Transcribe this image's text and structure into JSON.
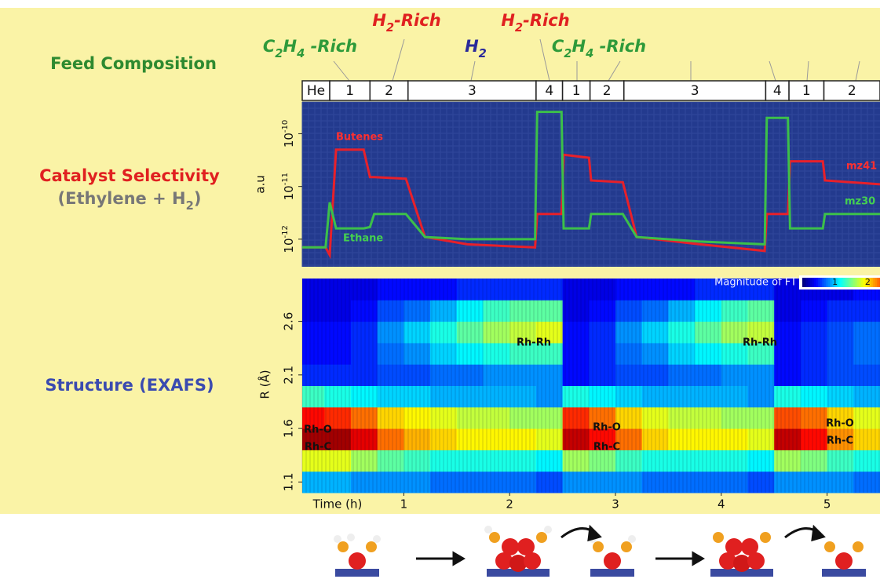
{
  "row_labels": {
    "feed": [
      "Feed  Composition"
    ],
    "selectivity": [
      "Catalyst Selectivity"
    ],
    "selectivity_sub": [
      "(Ethylene + H",
      "2",
      ")"
    ],
    "structure": [
      "Structure (EXAFS)"
    ]
  },
  "feed_labels": [
    {
      "parts": [
        "C",
        "2",
        "H",
        "4",
        " -Rich"
      ],
      "color": "#2e9a3a"
    },
    {
      "parts": [
        "H",
        "2",
        "-Rich"
      ],
      "color": "#e02020"
    },
    {
      "parts": [
        "H",
        "2"
      ],
      "color": "#2a2a9a"
    },
    {
      "parts": [
        "H",
        "2",
        "-Rich"
      ],
      "color": "#e02020"
    },
    {
      "parts": [
        "C",
        "2",
        "H",
        "4",
        " -Rich"
      ],
      "color": "#2e9a3a"
    }
  ],
  "chart_data": [
    {
      "type": "line",
      "log_y": true,
      "y_label": "a.u",
      "xlim": [
        0.04,
        5.5
      ],
      "ylim": [
        3e-13,
        4e-10
      ],
      "yticks": [
        {
          "value": 1e-10,
          "label": "10",
          "superscript": "-10"
        },
        {
          "value": 1e-11,
          "label": "10",
          "superscript": "-11"
        },
        {
          "value": 1e-12,
          "label": "10",
          "superscript": "-12"
        }
      ],
      "feed_segments": [
        {
          "label": "He",
          "start": 0.04,
          "end": 0.3
        },
        {
          "label": "1",
          "start": 0.3,
          "end": 0.68
        },
        {
          "label": "2",
          "start": 0.68,
          "end": 1.04
        },
        {
          "label": "3",
          "start": 1.04,
          "end": 2.25
        },
        {
          "label": "4",
          "start": 2.25,
          "end": 2.5
        },
        {
          "label": "1",
          "start": 2.5,
          "end": 2.76
        },
        {
          "label": "2",
          "start": 2.76,
          "end": 3.08
        },
        {
          "label": "3",
          "start": 3.08,
          "end": 4.42
        },
        {
          "label": "4",
          "start": 4.42,
          "end": 4.64
        },
        {
          "label": "1",
          "start": 4.64,
          "end": 4.97
        },
        {
          "label": "2",
          "start": 4.97,
          "end": 5.5
        }
      ],
      "x": [
        0.04,
        0.26,
        0.3,
        0.36,
        0.62,
        0.68,
        0.72,
        1.02,
        1.2,
        1.6,
        2.24,
        2.26,
        2.49,
        2.51,
        2.75,
        2.77,
        3.07,
        3.2,
        3.8,
        4.41,
        4.43,
        4.63,
        4.65,
        4.96,
        4.98,
        5.5
      ],
      "series": [
        {
          "name": "Butenes",
          "color": "#e8202a",
          "values": [
            7e-13,
            7e-13,
            5e-13,
            5e-11,
            5e-11,
            1.5e-11,
            1.5e-11,
            1.4e-11,
            1.1e-12,
            8e-13,
            7e-13,
            3e-12,
            3e-12,
            4e-11,
            3.5e-11,
            1.3e-11,
            1.2e-11,
            1.1e-12,
            8e-13,
            6e-13,
            3e-12,
            3e-12,
            3e-11,
            3e-11,
            1.3e-11,
            1.1e-11
          ]
        },
        {
          "name": "Ethane",
          "color": "#3cc04a",
          "values": [
            7e-13,
            7e-13,
            5e-12,
            1.6e-12,
            1.6e-12,
            1.7e-12,
            3e-12,
            3e-12,
            1.1e-12,
            1e-12,
            1e-12,
            2.6e-10,
            2.6e-10,
            1.6e-12,
            1.6e-12,
            3e-12,
            3e-12,
            1.1e-12,
            9e-13,
            8e-13,
            2e-10,
            2e-10,
            1.6e-12,
            1.6e-12,
            3e-12,
            3e-12
          ]
        }
      ],
      "annotations": [
        "mz41",
        "mz30"
      ]
    },
    {
      "type": "heatmap",
      "x_label": "Time (h)",
      "y_label": "R (Å)",
      "xlim": [
        0.04,
        5.5
      ],
      "ylim": [
        1.0,
        3.0
      ],
      "xticks": [
        1,
        2,
        3,
        4,
        5
      ],
      "yticks": [
        1.1,
        1.6,
        2.1,
        2.6
      ],
      "x_edges": [
        0.04,
        0.25,
        0.5,
        0.75,
        1.0,
        1.25,
        1.5,
        1.75,
        2.0,
        2.25,
        2.5,
        2.75,
        3.0,
        3.25,
        3.5,
        3.75,
        4.0,
        4.25,
        4.5,
        4.75,
        5.0,
        5.25,
        5.5
      ],
      "y_edges": [
        1.0,
        1.2,
        1.4,
        1.6,
        1.8,
        2.0,
        2.2,
        2.4,
        2.6,
        2.8,
        3.0
      ],
      "values": [
        [
          0.9,
          0.9,
          0.8,
          0.8,
          0.8,
          0.7,
          0.7,
          0.7,
          0.7,
          0.6,
          0.8,
          0.8,
          0.8,
          0.7,
          0.7,
          0.7,
          0.7,
          0.6,
          0.8,
          0.8,
          0.8,
          0.7
        ],
        [
          1.8,
          1.8,
          1.6,
          1.4,
          1.3,
          1.2,
          1.2,
          1.2,
          1.2,
          1.1,
          1.6,
          1.5,
          1.3,
          1.2,
          1.2,
          1.2,
          1.2,
          1.1,
          1.6,
          1.5,
          1.3,
          1.2
        ],
        [
          2.9,
          2.9,
          2.7,
          2.3,
          2.1,
          2.0,
          1.9,
          1.9,
          1.9,
          1.8,
          2.8,
          2.6,
          2.3,
          2.0,
          1.9,
          1.9,
          1.9,
          1.8,
          2.8,
          2.6,
          2.2,
          2.0
        ],
        [
          2.6,
          2.5,
          2.3,
          2.0,
          1.9,
          1.8,
          1.7,
          1.7,
          1.6,
          1.6,
          2.5,
          2.3,
          2.0,
          1.8,
          1.7,
          1.7,
          1.6,
          1.6,
          2.4,
          2.3,
          2.0,
          1.8
        ],
        [
          1.3,
          1.2,
          1.1,
          1.0,
          1.0,
          0.9,
          0.9,
          0.9,
          0.9,
          0.8,
          1.2,
          1.1,
          1.0,
          0.9,
          0.9,
          0.9,
          0.9,
          0.8,
          1.2,
          1.1,
          1.0,
          0.9
        ],
        [
          0.5,
          0.5,
          0.5,
          0.6,
          0.6,
          0.7,
          0.7,
          0.8,
          0.8,
          0.8,
          0.4,
          0.5,
          0.6,
          0.6,
          0.7,
          0.7,
          0.8,
          0.8,
          0.4,
          0.5,
          0.6,
          0.6
        ],
        [
          0.4,
          0.4,
          0.5,
          0.7,
          0.8,
          1.0,
          1.1,
          1.2,
          1.3,
          1.3,
          0.4,
          0.5,
          0.7,
          0.8,
          1.0,
          1.1,
          1.2,
          1.3,
          0.4,
          0.5,
          0.6,
          0.7
        ],
        [
          0.4,
          0.4,
          0.5,
          0.8,
          1.0,
          1.2,
          1.4,
          1.6,
          1.7,
          1.8,
          0.4,
          0.5,
          0.8,
          1.0,
          1.2,
          1.4,
          1.6,
          1.7,
          0.4,
          0.5,
          0.6,
          0.7
        ],
        [
          0.3,
          0.3,
          0.4,
          0.6,
          0.7,
          0.9,
          1.1,
          1.3,
          1.4,
          1.4,
          0.3,
          0.4,
          0.6,
          0.7,
          0.9,
          1.1,
          1.3,
          1.4,
          0.3,
          0.4,
          0.5,
          0.5
        ],
        [
          0.3,
          0.3,
          0.3,
          0.4,
          0.4,
          0.4,
          0.5,
          0.5,
          0.5,
          0.5,
          0.3,
          0.3,
          0.4,
          0.4,
          0.4,
          0.5,
          0.5,
          0.5,
          0.3,
          0.3,
          0.3,
          0.4
        ]
      ],
      "colorbar_label": "Magnitude of FT",
      "clim": [
        0,
        3
      ],
      "cticks": [
        1,
        2
      ],
      "annotations": [
        "Rh-Rh",
        "Rh-Rh",
        "Rh-O",
        "Rh-C",
        "Rh-O",
        "Rh-C",
        "Rh-O",
        "Rh-C"
      ]
    }
  ]
}
